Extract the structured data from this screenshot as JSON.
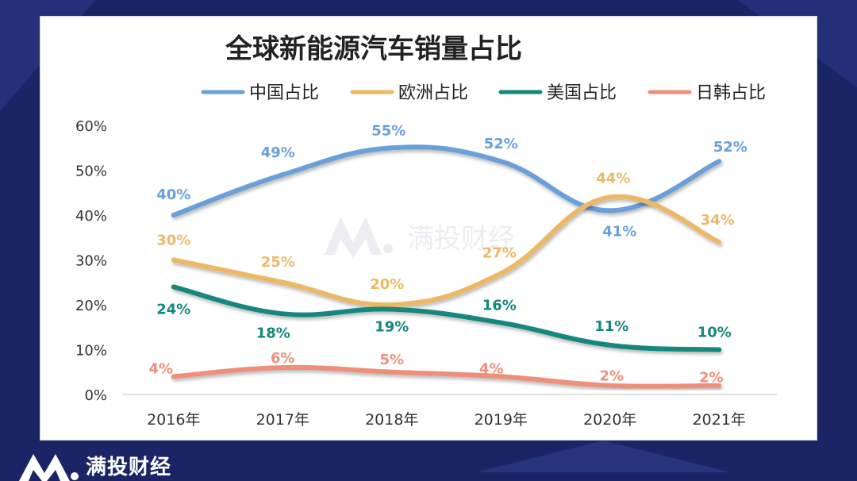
{
  "watermark": "满投财经",
  "brand": {
    "name": "满投财经"
  },
  "colors": {
    "background": "#1b2566",
    "china": "#6a9fd8",
    "europe": "#edb866",
    "usa": "#15877c",
    "japan_korea": "#ee8f7c",
    "axis_text": "#333333",
    "grid": "#d9d9d9"
  },
  "chart_data": {
    "type": "line",
    "title": "全球新能源汽车销量占比",
    "categories": [
      "2016年",
      "2017年",
      "2018年",
      "2019年",
      "2020年",
      "2021年"
    ],
    "yticks": [
      "0%",
      "10%",
      "20%",
      "30%",
      "40%",
      "50%",
      "60%"
    ],
    "ylim": [
      0,
      60
    ],
    "grid": false,
    "smooth": true,
    "legend_position": "top",
    "series": [
      {
        "name": "中国占比",
        "color": "#6a9fd8",
        "values": [
          40,
          49,
          55,
          52,
          41,
          52
        ],
        "labels": [
          "40%",
          "49%",
          "55%",
          "52%",
          "41%",
          "52%"
        ]
      },
      {
        "name": "欧洲占比",
        "color": "#edb866",
        "values": [
          30,
          25,
          20,
          27,
          44,
          34
        ],
        "labels": [
          "30%",
          "25%",
          "20%",
          "27%",
          "44%",
          "34%"
        ]
      },
      {
        "name": "美国占比",
        "color": "#15877c",
        "values": [
          24,
          18,
          19,
          16,
          11,
          10
        ],
        "labels": [
          "24%",
          "18%",
          "19%",
          "16%",
          "11%",
          "10%"
        ]
      },
      {
        "name": "日韩占比",
        "color": "#ee8f7c",
        "values": [
          4,
          6,
          5,
          4,
          2,
          2
        ],
        "labels": [
          "4%",
          "6%",
          "5%",
          "4%",
          "2%",
          "2%"
        ]
      }
    ]
  }
}
